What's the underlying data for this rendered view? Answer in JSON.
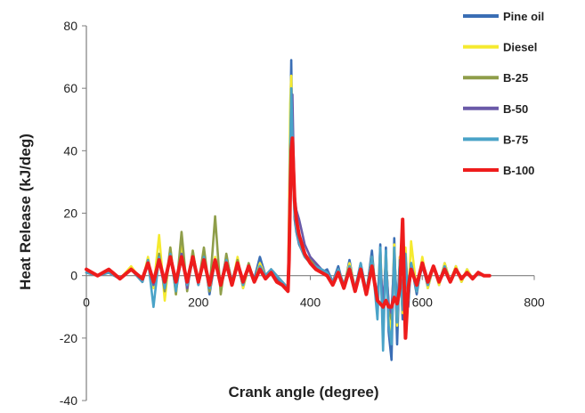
{
  "chart_data": {
    "type": "line",
    "title": "",
    "xlabel": "Crank angle (degree)",
    "ylabel": "Heat Release (kJ/deg)",
    "xlim": [
      0,
      800
    ],
    "ylim": [
      -40,
      80
    ],
    "x_ticks": [
      0,
      200,
      400,
      600,
      800
    ],
    "y_ticks": [
      -40,
      -20,
      0,
      20,
      40,
      60,
      80
    ],
    "x_tick_labels": [
      "0",
      "200",
      "400",
      "600",
      "800"
    ],
    "y_tick_labels": [
      "-40",
      "-20",
      "0",
      "20",
      "40",
      "60",
      "80"
    ],
    "grid": false,
    "legend_position": "right",
    "series": [
      {
        "name": "Pine oil",
        "color": "#3a6eb5",
        "x": [
          0,
          20,
          40,
          60,
          80,
          100,
          110,
          120,
          130,
          140,
          150,
          160,
          170,
          180,
          190,
          200,
          210,
          220,
          230,
          240,
          250,
          260,
          270,
          280,
          290,
          300,
          310,
          320,
          330,
          340,
          350,
          355,
          360,
          362,
          364,
          366,
          368,
          370,
          372,
          375,
          380,
          385,
          390,
          400,
          410,
          420,
          430,
          440,
          450,
          460,
          470,
          480,
          490,
          500,
          510,
          520,
          525,
          530,
          535,
          540,
          545,
          550,
          555,
          560,
          565,
          570,
          575,
          580,
          590,
          600,
          610,
          620,
          630,
          640,
          650,
          660,
          670,
          680,
          690,
          700,
          710,
          720
        ],
        "y": [
          2,
          0,
          1,
          -1,
          2,
          -2,
          5,
          -3,
          6,
          -4,
          7,
          -5,
          8,
          -3,
          6,
          -2,
          7,
          -6,
          5,
          -3,
          6,
          -2,
          5,
          -4,
          3,
          -1,
          6,
          0,
          2,
          -1,
          -3,
          -4,
          -5,
          15,
          45,
          69,
          40,
          28,
          18,
          14,
          10,
          8,
          6,
          4,
          3,
          1,
          2,
          -2,
          3,
          -4,
          5,
          -5,
          4,
          -6,
          8,
          -12,
          10,
          -20,
          9,
          -18,
          -27,
          12,
          -22,
          6,
          -14,
          8,
          -10,
          4,
          -6,
          5,
          -4,
          3,
          -3,
          4,
          -2,
          3,
          -2,
          2,
          -1,
          1,
          0,
          0
        ]
      },
      {
        "name": "Diesel",
        "color": "#f5ea2f",
        "x": [
          0,
          20,
          40,
          60,
          80,
          100,
          110,
          120,
          130,
          140,
          150,
          160,
          170,
          180,
          190,
          200,
          210,
          220,
          230,
          240,
          250,
          260,
          270,
          280,
          290,
          300,
          310,
          320,
          330,
          340,
          350,
          355,
          360,
          362,
          364,
          366,
          368,
          370,
          372,
          375,
          380,
          385,
          390,
          400,
          410,
          420,
          430,
          440,
          450,
          460,
          470,
          480,
          490,
          500,
          510,
          520,
          525,
          530,
          535,
          540,
          545,
          550,
          555,
          560,
          565,
          570,
          575,
          580,
          590,
          600,
          610,
          620,
          630,
          640,
          650,
          660,
          670,
          680,
          690,
          700,
          710,
          720
        ],
        "y": [
          1,
          0,
          2,
          -1,
          3,
          -2,
          6,
          -4,
          13,
          -8,
          9,
          -6,
          10,
          -4,
          8,
          -3,
          7,
          -5,
          6,
          -4,
          5,
          -3,
          6,
          -4,
          3,
          -2,
          4,
          0,
          2,
          0,
          -2,
          -3,
          -4,
          20,
          55,
          64,
          42,
          30,
          20,
          15,
          11,
          8,
          6,
          4,
          3,
          2,
          1,
          -2,
          2,
          -3,
          4,
          -4,
          3,
          -5,
          6,
          -10,
          8,
          -15,
          7,
          -12,
          -18,
          10,
          -16,
          6,
          -12,
          9,
          -8,
          11,
          -5,
          6,
          -4,
          3,
          -3,
          4,
          -2,
          3,
          -2,
          2,
          -1,
          1,
          0,
          0
        ]
      },
      {
        "name": "B-25",
        "color": "#8f9e4a",
        "x": [
          0,
          20,
          40,
          60,
          80,
          100,
          110,
          120,
          130,
          140,
          150,
          160,
          170,
          180,
          190,
          200,
          210,
          220,
          230,
          240,
          250,
          260,
          270,
          280,
          290,
          300,
          310,
          320,
          330,
          340,
          350,
          355,
          360,
          362,
          364,
          366,
          368,
          370,
          372,
          375,
          380,
          385,
          390,
          400,
          410,
          420,
          430,
          440,
          450,
          460,
          470,
          480,
          490,
          500,
          510,
          520,
          525,
          530,
          535,
          540,
          545,
          550,
          555,
          560,
          565,
          570,
          575,
          580,
          590,
          600,
          610,
          620,
          630,
          640,
          650,
          660,
          670,
          680,
          690,
          700,
          710,
          720
        ],
        "y": [
          1,
          0,
          1,
          -1,
          2,
          -2,
          5,
          -3,
          7,
          -5,
          9,
          -6,
          14,
          -5,
          8,
          -3,
          9,
          -5,
          19,
          -6,
          7,
          -3,
          5,
          -3,
          4,
          -2,
          3,
          0,
          2,
          0,
          -2,
          -3,
          -4,
          10,
          40,
          58,
          48,
          32,
          22,
          16,
          12,
          9,
          7,
          5,
          3,
          2,
          1,
          -2,
          2,
          -3,
          3,
          -4,
          3,
          -5,
          5,
          -8,
          6,
          -12,
          6,
          -10,
          -14,
          8,
          -12,
          5,
          -9,
          6,
          -7,
          4,
          -5,
          4,
          -3,
          3,
          -2,
          3,
          -2,
          2,
          -1,
          1,
          -1,
          1,
          0,
          0
        ]
      },
      {
        "name": "B-50",
        "color": "#6a5aa8",
        "x": [
          0,
          20,
          40,
          60,
          80,
          100,
          110,
          120,
          130,
          140,
          150,
          160,
          170,
          180,
          190,
          200,
          210,
          220,
          230,
          240,
          250,
          260,
          270,
          280,
          290,
          300,
          310,
          320,
          330,
          340,
          350,
          355,
          360,
          362,
          364,
          366,
          368,
          370,
          372,
          375,
          380,
          385,
          390,
          400,
          410,
          420,
          430,
          440,
          450,
          460,
          470,
          480,
          490,
          500,
          510,
          520,
          525,
          530,
          535,
          540,
          545,
          550,
          555,
          560,
          565,
          570,
          575,
          580,
          590,
          600,
          610,
          620,
          630,
          640,
          650,
          660,
          670,
          680,
          690,
          700,
          710,
          720
        ],
        "y": [
          1,
          0,
          1,
          -1,
          2,
          -2,
          4,
          -3,
          5,
          -4,
          6,
          -4,
          7,
          -4,
          6,
          -3,
          6,
          -4,
          5,
          -3,
          5,
          -3,
          4,
          -3,
          3,
          -2,
          3,
          0,
          2,
          0,
          -2,
          -3,
          -4,
          8,
          30,
          50,
          58,
          40,
          26,
          21,
          18,
          14,
          10,
          6,
          4,
          2,
          1,
          -2,
          2,
          -3,
          3,
          -4,
          3,
          -5,
          4,
          -7,
          5,
          -10,
          5,
          -9,
          -12,
          6,
          -10,
          4,
          -8,
          5,
          -6,
          4,
          -4,
          3,
          -3,
          3,
          -2,
          2,
          -2,
          2,
          -1,
          1,
          -1,
          1,
          0,
          0
        ]
      },
      {
        "name": "B-75",
        "color": "#4aa3c8",
        "x": [
          0,
          20,
          40,
          60,
          80,
          100,
          110,
          120,
          130,
          140,
          150,
          160,
          170,
          180,
          190,
          200,
          210,
          220,
          230,
          240,
          250,
          260,
          270,
          280,
          290,
          300,
          310,
          320,
          330,
          340,
          350,
          355,
          360,
          362,
          364,
          366,
          368,
          370,
          372,
          375,
          380,
          385,
          390,
          400,
          410,
          420,
          430,
          440,
          450,
          460,
          470,
          480,
          490,
          500,
          510,
          520,
          525,
          530,
          535,
          540,
          545,
          550,
          555,
          560,
          565,
          570,
          575,
          580,
          590,
          600,
          610,
          620,
          630,
          640,
          650,
          660,
          670,
          680,
          690,
          700,
          710,
          720
        ],
        "y": [
          1,
          0,
          1,
          -1,
          2,
          -2,
          5,
          -10,
          6,
          -4,
          7,
          -5,
          6,
          -3,
          5,
          -3,
          6,
          -4,
          5,
          -3,
          5,
          -3,
          4,
          -3,
          3,
          -2,
          3,
          0,
          2,
          0,
          -2,
          -3,
          -4,
          12,
          38,
          60,
          45,
          30,
          20,
          15,
          11,
          8,
          6,
          4,
          3,
          2,
          1,
          -2,
          2,
          -3,
          3,
          -4,
          4,
          -5,
          6,
          -14,
          9,
          -24,
          8,
          -16,
          -22,
          9,
          -15,
          5,
          -11,
          7,
          -8,
          4,
          -5,
          4,
          -3,
          3,
          -2,
          3,
          -2,
          2,
          -1,
          1,
          -1,
          1,
          0,
          0
        ]
      },
      {
        "name": "B-100",
        "color": "#ee1c1c",
        "x": [
          0,
          20,
          40,
          60,
          80,
          100,
          110,
          120,
          130,
          140,
          150,
          160,
          170,
          180,
          190,
          200,
          210,
          220,
          230,
          240,
          250,
          260,
          270,
          280,
          290,
          300,
          310,
          320,
          330,
          340,
          350,
          355,
          360,
          362,
          364,
          366,
          368,
          370,
          372,
          375,
          380,
          385,
          390,
          400,
          410,
          420,
          430,
          440,
          450,
          460,
          470,
          480,
          490,
          500,
          510,
          520,
          525,
          530,
          535,
          540,
          545,
          550,
          555,
          560,
          565,
          570,
          575,
          580,
          590,
          600,
          610,
          620,
          630,
          640,
          650,
          660,
          670,
          680,
          690,
          700,
          710,
          720
        ],
        "y": [
          2,
          0,
          2,
          -1,
          2,
          -1,
          4,
          -2,
          5,
          -2,
          6,
          -2,
          6,
          -2,
          6,
          -2,
          5,
          -3,
          5,
          -3,
          4,
          -3,
          4,
          -2,
          3,
          -2,
          2,
          -1,
          1,
          -2,
          -3,
          -4,
          -5,
          5,
          25,
          40,
          44,
          34,
          24,
          18,
          13,
          10,
          7,
          4,
          2,
          1,
          0,
          -3,
          1,
          -4,
          2,
          -5,
          2,
          -6,
          3,
          -8,
          -9,
          -10,
          -8,
          -10,
          -10,
          -7,
          -9,
          -4,
          18,
          -20,
          -4,
          2,
          -3,
          4,
          -2,
          3,
          -2,
          2,
          -2,
          2,
          -1,
          1,
          -1,
          1,
          0,
          0
        ]
      }
    ]
  }
}
